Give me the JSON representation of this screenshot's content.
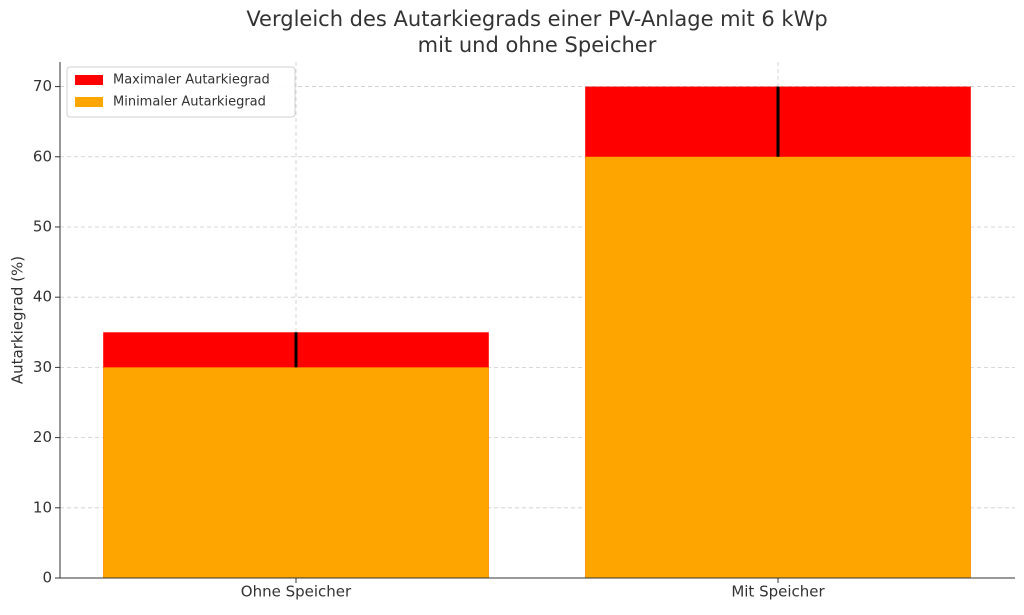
{
  "chart_data": {
    "type": "bar",
    "title": "Vergleich des Autarkiegrads einer PV-Anlage mit 6 kWp\nmit und ohne Speicher",
    "ylabel": "Autarkiegrad (%)",
    "categories": [
      "Ohne Speicher",
      "Mit Speicher"
    ],
    "series": [
      {
        "name": "Maximaler Autarkiegrad",
        "color": "#ff0000",
        "values": [
          35,
          70
        ]
      },
      {
        "name": "Minimaler Autarkiegrad",
        "color": "#ffa500",
        "values": [
          30,
          60
        ]
      }
    ],
    "ylim": [
      0,
      73.5
    ],
    "yticks": [
      0,
      10,
      20,
      30,
      40,
      50,
      60,
      70
    ],
    "grid": true,
    "legend": "upper left"
  }
}
